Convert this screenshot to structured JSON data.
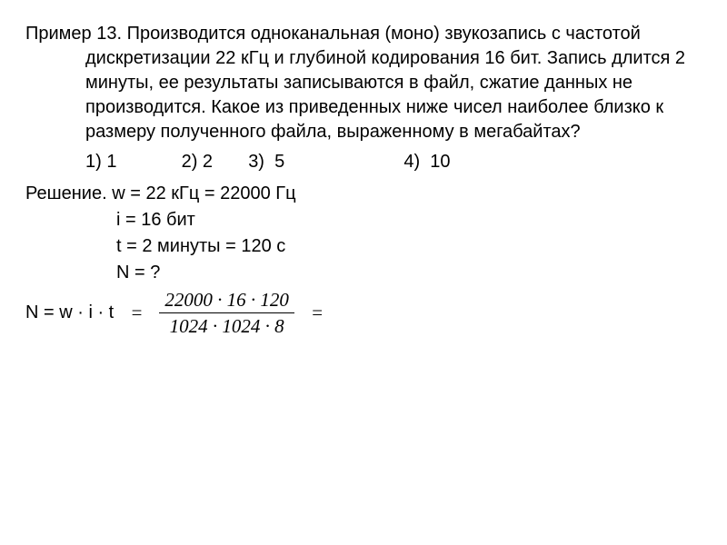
{
  "colors": {
    "text": "#000000",
    "background": "#ffffff",
    "rule": "#000000"
  },
  "fontsizes": {
    "body_pt": 15,
    "fraction_pt": 16
  },
  "problem": {
    "label": "Пример 13.",
    "text": "Производится одноканальная (моно) звукозапись с частотой дискретизации 22 кГц и глубиной кодирования 16 бит. Запись длится 2 минуты, ее результаты записываются в файл, сжатие данных не производится. Какое из приведенных ниже чисел наиболее близко к размеру полученного файла, выраженному в мегабайтах?"
  },
  "options": {
    "o1": "1) 1",
    "o2": "2) 2",
    "o3": "3)  5",
    "o4": "4)  10",
    "gap12": "60px",
    "gap23": "28px",
    "gap34": "120px"
  },
  "solution": {
    "line1": "Решение. w = 22 кГц = 22000 Гц",
    "line2": "i = 16 бит",
    "line3": "t = 2 минуты = 120 с",
    "line4": "N = ?",
    "formula_left": "N = w · i  ·  t",
    "eq1": "=",
    "fraction": {
      "num": "22000 · 16 · 120",
      "den": "1024 · 1024 · 8"
    },
    "eq2": "="
  }
}
